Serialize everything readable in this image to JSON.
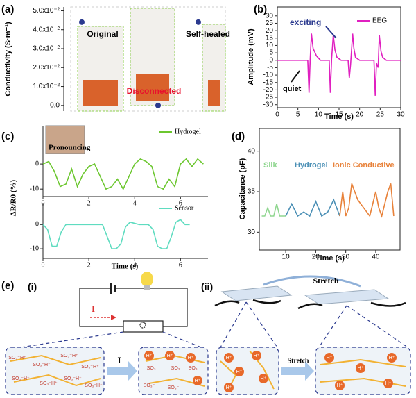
{
  "chart_data": [
    {
      "type": "scatter",
      "panel_label": "(a)",
      "y_label": "Conductivity (S·m⁻¹)",
      "categories": [
        "Original",
        "Disconnected",
        "Self-healed"
      ],
      "label_colors": [
        "#000000",
        "#e8112d",
        "#000000"
      ],
      "values": [
        0.044,
        0.0,
        0.044
      ],
      "color": "#2b3a8f",
      "ylim": [
        -0.003,
        0.052
      ],
      "yticks": [
        {
          "value": 0,
          "label": "0.0"
        },
        {
          "value": 0.01,
          "label": "1.0x10⁻²"
        },
        {
          "value": 0.02,
          "label": "2.0x10⁻²"
        },
        {
          "value": 0.03,
          "label": "3.0x10⁻²"
        },
        {
          "value": 0.04,
          "label": "4.0x10⁻²"
        },
        {
          "value": 0.05,
          "label": "5.0x10⁻²"
        }
      ]
    },
    {
      "type": "line",
      "panel_label": "(b)",
      "x_label": "Time (s)",
      "y_label": "Amplitude (mV)",
      "annotations": [
        "exciting",
        "quiet"
      ],
      "x": [
        0,
        3,
        6,
        7.4,
        7.7,
        8.0,
        8.3,
        8.7,
        9.5,
        10.5,
        12.6,
        12.9,
        13.2,
        13.6,
        14.0,
        14.5,
        15.5,
        17.2,
        17.5,
        17.8,
        18.3,
        18.6,
        19.0,
        20,
        23.5,
        23.8,
        24.1,
        24.5,
        24.8,
        25.2,
        25.6,
        26.5,
        30
      ],
      "series": [
        {
          "name": "EEG",
          "color": "#e020c0",
          "values": [
            0,
            0,
            0,
            0,
            -22,
            2,
            18,
            8,
            3,
            0,
            0,
            -22,
            1,
            17,
            7,
            2,
            0,
            0,
            -12,
            -3,
            18,
            8,
            2,
            0,
            0,
            -24,
            -2,
            -5,
            17,
            6,
            2,
            0,
            0
          ]
        }
      ],
      "xlim": [
        0,
        30
      ],
      "ylim": [
        -32,
        36
      ],
      "xticks": [
        0,
        5,
        10,
        15,
        20,
        25,
        30
      ],
      "yticks": [
        -30,
        -25,
        -20,
        -15,
        -10,
        -5,
        0,
        5,
        10,
        15,
        20,
        25,
        30
      ]
    },
    {
      "type": "line",
      "panel_label": "(c)",
      "y_label": "ΔR/R0 (%)",
      "annotations": [
        "Pronouncing"
      ],
      "x": [
        0,
        0.25,
        0.5,
        0.75,
        1,
        1.25,
        1.5,
        1.75,
        2,
        2.25,
        2.5,
        2.75,
        3,
        3.25,
        3.5,
        3.75,
        4,
        4.25,
        4.5,
        4.75,
        5,
        5.25,
        5.5,
        5.75,
        6,
        6.25,
        6.5,
        6.75,
        7
      ],
      "series": [
        {
          "name": "Hydrogel",
          "color": "#6cc72f",
          "values": [
            0,
            1,
            -3,
            -9,
            -8,
            -2,
            -9,
            -4,
            -1,
            0,
            -5,
            -10,
            -9,
            -6,
            -10,
            -5,
            0,
            2,
            1,
            -1,
            -9,
            -10,
            -6,
            -9,
            0,
            2,
            -1,
            2,
            0
          ]
        }
      ],
      "xlim": [
        0,
        7.2
      ],
      "ylim": [
        -13,
        15
      ],
      "xticks": [
        0,
        2,
        4,
        6
      ],
      "yticks": [
        0,
        -10
      ]
    },
    {
      "type": "line",
      "x_label": "Time (s)",
      "x": [
        0,
        0.2,
        0.4,
        0.6,
        0.8,
        1.0,
        1.4,
        1.8,
        2.2,
        2.6,
        2.8,
        3.0,
        3.2,
        3.4,
        3.6,
        3.8,
        4.2,
        4.6,
        4.8,
        5.0,
        5.2,
        5.4,
        5.6,
        5.8,
        6.0,
        6.2,
        6.4
      ],
      "series": [
        {
          "name": "Sensor",
          "color": "#5fdcc0",
          "values": [
            0,
            -2,
            -9,
            -9,
            -3,
            0,
            0,
            0,
            0,
            0,
            -5,
            -10,
            -10,
            -8,
            -1,
            1,
            0,
            0,
            -2,
            -9,
            -10,
            -10,
            -5,
            1,
            2,
            0,
            0
          ]
        }
      ],
      "xlim": [
        0,
        7.2
      ],
      "ylim": [
        -14,
        9
      ],
      "xticks": [
        0,
        2,
        4,
        6
      ],
      "yticks": [
        0,
        -10
      ]
    },
    {
      "type": "line",
      "panel_label": "(d)",
      "x_label": "Time (s)",
      "y_label": "Capacitance (pF)",
      "series": [
        {
          "name": "Silk",
          "color": "#8fd68f",
          "x": [
            2,
            3,
            4,
            5,
            6,
            7,
            8,
            9,
            10
          ],
          "values": [
            32,
            32,
            33,
            32,
            32,
            33.5,
            32,
            32,
            32
          ]
        },
        {
          "name": "Hydrogel",
          "color": "#4a8fb5",
          "x": [
            10,
            12,
            14,
            16,
            18,
            20,
            22,
            24,
            26,
            28
          ],
          "values": [
            32,
            33.5,
            32,
            32.5,
            32,
            33.8,
            32,
            32.5,
            34,
            32
          ]
        },
        {
          "name": "Ionic Conductive",
          "color": "#e8823a",
          "x": [
            28,
            29,
            30,
            31,
            32,
            34,
            36,
            38,
            40,
            41,
            42,
            44,
            45,
            46
          ],
          "values": [
            32,
            35,
            32,
            33,
            36,
            34,
            33,
            32,
            35,
            33,
            32,
            35,
            36,
            32
          ]
        }
      ],
      "xlim": [
        1.2,
        48.1
      ],
      "ylim": [
        27.8,
        42.8
      ],
      "xticks": [
        10,
        20,
        30,
        40
      ],
      "yticks": [
        30,
        35,
        40
      ]
    }
  ],
  "diagram": {
    "label": "(e)",
    "part_i": "(i)",
    "part_ii": "(ii)",
    "current": "I",
    "current_arrow": "I",
    "stretch_top": "Stretch",
    "stretch_bottom": "Stretch",
    "box1_ions": [
      "SO₃⁻H⁺",
      "SO₃⁻H⁺",
      "SO₃⁻H⁺",
      "SO₃⁻H⁺",
      "SO₃⁻H⁺",
      "SO₃⁻H⁺",
      "SO₃⁻H⁺",
      "SO₃⁻H⁺"
    ],
    "box2_ions": [
      "H⁺",
      "H⁺",
      "H⁺",
      "H⁺",
      "SO₃⁻",
      "SO₃⁻",
      "SO₃⁻",
      "SO₃⁻",
      "SO₃⁻"
    ],
    "box3_ions": [
      "H⁺",
      "H⁺",
      "H⁺",
      "H⁺",
      "H⁺"
    ],
    "box4_ions": [
      "H⁺",
      "H⁺",
      "H⁺",
      "H⁺",
      "H⁺"
    ]
  }
}
